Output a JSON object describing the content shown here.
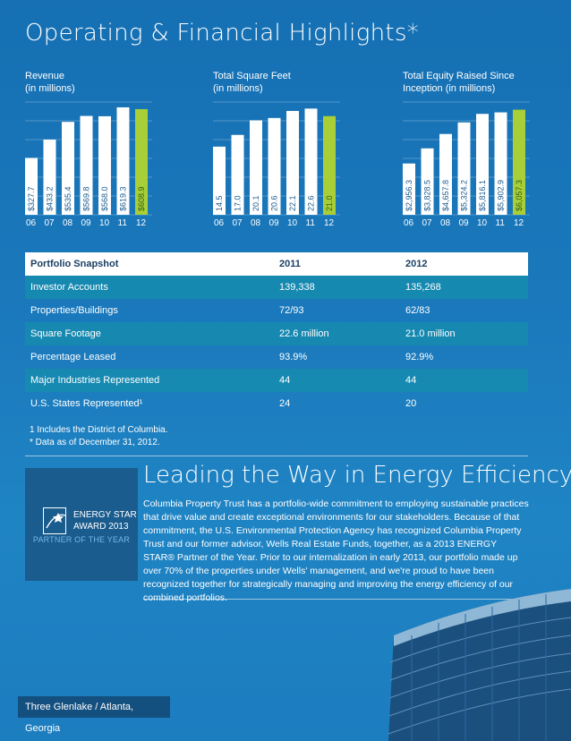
{
  "title": "Operating & Financial Highlights*",
  "x_categories": [
    "06",
    "07",
    "08",
    "09",
    "10",
    "11",
    "12"
  ],
  "colors": {
    "bar": "#ffffff",
    "highlight": "#a9cf38",
    "shade_row": "#168caf"
  },
  "chart_data": [
    {
      "type": "bar",
      "title_line1": "Revenue",
      "title_line2": "(in millions)",
      "categories": [
        "06",
        "07",
        "08",
        "09",
        "10",
        "11",
        "12"
      ],
      "values": [
        327.7,
        433.2,
        535.4,
        569.8,
        568.0,
        619.3,
        608.9
      ],
      "labels": [
        "$327.7",
        "$433.2",
        "$535.4",
        "$569.8",
        "$568.0",
        "$619.3",
        "$608.9"
      ],
      "highlight_index": 6,
      "ylim": [
        0,
        650
      ],
      "grid": true
    },
    {
      "type": "bar",
      "title_line1": "Total Square Feet",
      "title_line2": "(in millions)",
      "categories": [
        "06",
        "07",
        "08",
        "09",
        "10",
        "11",
        "12"
      ],
      "values": [
        14.5,
        17.0,
        20.1,
        20.6,
        22.1,
        22.6,
        21.0
      ],
      "labels": [
        "14.5",
        "17.0",
        "20.1",
        "20.6",
        "22.1",
        "22.6",
        "21.0"
      ],
      "highlight_index": 6,
      "ylim": [
        0,
        24
      ],
      "grid": true
    },
    {
      "type": "bar",
      "title_line1": "Total Equity Raised Since",
      "title_line2": "Inception (in millions)",
      "categories": [
        "06",
        "07",
        "08",
        "09",
        "10",
        "11",
        "12"
      ],
      "values": [
        2956.3,
        3828.5,
        4657.8,
        5324.2,
        5816.1,
        5902.9,
        6057.3
      ],
      "labels": [
        "$2,956.3",
        "$3,828.5",
        "$4,657.8",
        "$5,324.2",
        "$5,816.1",
        "$5,902.9",
        "$6,057.3"
      ],
      "highlight_index": 6,
      "ylim": [
        0,
        6500
      ],
      "grid": true
    }
  ],
  "snapshot": {
    "headers": [
      "Portfolio Snapshot",
      "2011",
      "2012"
    ],
    "rows": [
      [
        "Investor Accounts",
        "139,338",
        "135,268"
      ],
      [
        "Properties/Buildings",
        "72/93",
        "62/83"
      ],
      [
        "Square Footage",
        "22.6 million",
        "21.0 million"
      ],
      [
        "Percentage Leased",
        "93.9%",
        "92.9%"
      ],
      [
        "Major Industries Represented",
        "44",
        "44"
      ],
      [
        "U.S. States Represented¹",
        "24",
        "20"
      ]
    ]
  },
  "footnotes": [
    "1 Includes the District of Columbia.",
    "* Data as of December 31, 2012."
  ],
  "badge": {
    "line1": "ENERGY STAR",
    "line2": "AWARD 2013",
    "partner": "PARTNER OF THE YEAR"
  },
  "energy": {
    "title": "Leading the Way in Energy Efficiency",
    "body": "Columbia Property Trust has a portfolio-wide commitment to employing sustainable practices that drive value and create exceptional environments for our stakeholders. Because of that commitment, the U.S. Environmental Protection Agency has recognized Columbia Property Trust and our former advisor, Wells Real Estate Funds, together, as a 2013 ENERGY STAR® Partner of the Year. Prior to our internalization in early 2013, our portfolio made up over 70% of the properties under Wells' management, and we're proud to have been recognized together for strategically managing and improving the energy efficiency of our combined portfolios."
  },
  "caption": "Three Glenlake / Atlanta, Georgia"
}
